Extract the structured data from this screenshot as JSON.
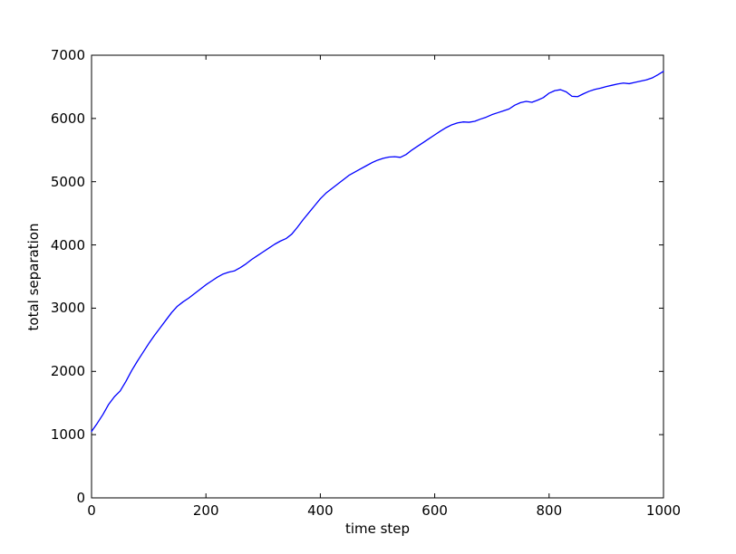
{
  "figure": {
    "background": "#ffffff",
    "frame_color": "#000000",
    "tick_color": "#000000",
    "text_color": "#000000"
  },
  "chart_data": {
    "type": "line",
    "title": "",
    "xlabel": "time step",
    "ylabel": "total separation",
    "xlim": [
      0,
      1000
    ],
    "ylim": [
      0,
      7000
    ],
    "xticks": [
      0,
      200,
      400,
      600,
      800,
      1000
    ],
    "yticks": [
      0,
      1000,
      2000,
      3000,
      4000,
      5000,
      6000,
      7000
    ],
    "grid": false,
    "legend_position": "none",
    "line_color": "#0000ff",
    "x": [
      0,
      10,
      20,
      30,
      40,
      50,
      60,
      70,
      80,
      90,
      100,
      110,
      120,
      130,
      140,
      150,
      160,
      170,
      180,
      190,
      200,
      210,
      220,
      230,
      240,
      250,
      260,
      270,
      280,
      290,
      300,
      310,
      320,
      330,
      340,
      350,
      360,
      370,
      380,
      390,
      400,
      410,
      420,
      430,
      440,
      450,
      460,
      470,
      480,
      490,
      500,
      510,
      520,
      530,
      540,
      550,
      560,
      570,
      580,
      590,
      600,
      610,
      620,
      630,
      640,
      650,
      660,
      670,
      680,
      690,
      700,
      710,
      720,
      730,
      740,
      750,
      760,
      770,
      780,
      790,
      800,
      810,
      820,
      830,
      840,
      850,
      860,
      870,
      880,
      890,
      900,
      910,
      920,
      930,
      940,
      950,
      960,
      970,
      980,
      990,
      1000
    ],
    "y": [
      1050,
      1180,
      1320,
      1480,
      1600,
      1690,
      1840,
      2010,
      2160,
      2300,
      2440,
      2570,
      2690,
      2810,
      2930,
      3030,
      3100,
      3160,
      3230,
      3300,
      3370,
      3430,
      3490,
      3540,
      3570,
      3590,
      3640,
      3700,
      3770,
      3830,
      3890,
      3950,
      4010,
      4060,
      4100,
      4170,
      4280,
      4400,
      4510,
      4620,
      4730,
      4820,
      4890,
      4960,
      5030,
      5100,
      5150,
      5200,
      5250,
      5300,
      5340,
      5370,
      5390,
      5395,
      5385,
      5430,
      5500,
      5560,
      5620,
      5680,
      5740,
      5800,
      5855,
      5900,
      5930,
      5945,
      5940,
      5955,
      5990,
      6020,
      6060,
      6090,
      6120,
      6150,
      6210,
      6250,
      6270,
      6255,
      6290,
      6330,
      6400,
      6440,
      6455,
      6420,
      6350,
      6345,
      6390,
      6430,
      6460,
      6480,
      6505,
      6525,
      6545,
      6560,
      6550,
      6570,
      6590,
      6610,
      6640,
      6690,
      6745
    ]
  }
}
